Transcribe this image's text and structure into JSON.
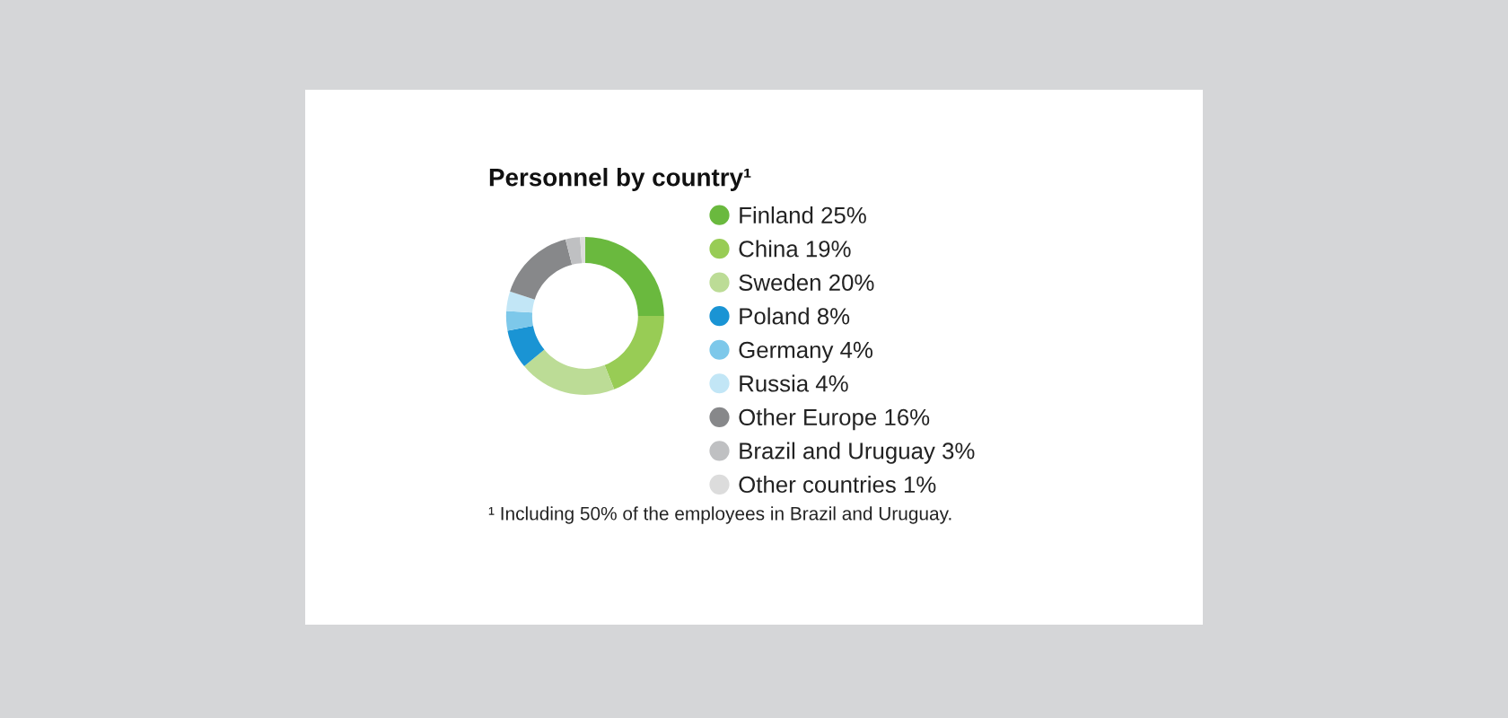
{
  "chart_data": {
    "type": "donut",
    "title": "Personnel by country¹",
    "categories": [
      "Finland",
      "China",
      "Sweden",
      "Poland",
      "Germany",
      "Russia",
      "Other Europe",
      "Brazil and Uruguay",
      "Other countries"
    ],
    "values": [
      25,
      19,
      20,
      8,
      4,
      4,
      16,
      3,
      1
    ],
    "value_labels": [
      "25%",
      "19%",
      "20%",
      "8%",
      "4%",
      "4%",
      "16%",
      "3%",
      "1%"
    ],
    "colors": [
      "#6ab93e",
      "#98cc55",
      "#bcdc96",
      "#1a94d4",
      "#7dc8ea",
      "#c2e6f6",
      "#87888a",
      "#bfc0c2",
      "#dcdcdc"
    ],
    "legend": "right",
    "annotations": [
      "¹ Including 50% of the employees in Brazil and Uruguay."
    ]
  }
}
